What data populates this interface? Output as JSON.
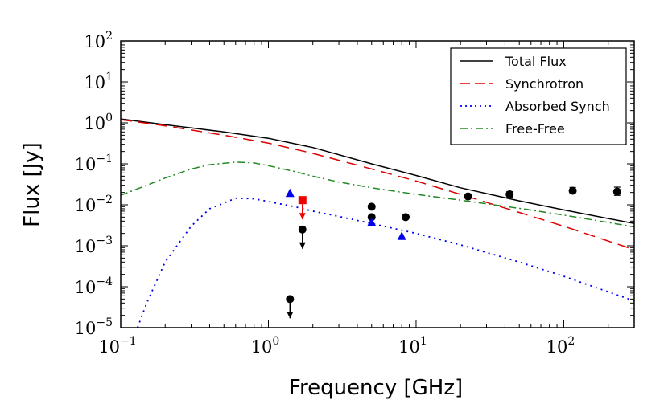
{
  "chart_data": {
    "type": "line",
    "xlabel": "Frequency [GHz]",
    "ylabel": "Flux [Jy]",
    "xscale": "log",
    "yscale": "log",
    "xlim": [
      0.1,
      300
    ],
    "ylim": [
      1e-05,
      100
    ],
    "x_ticks": [
      {
        "value": 0.1,
        "base": "10",
        "exp": "−1"
      },
      {
        "value": 1,
        "base": "10",
        "exp": "0"
      },
      {
        "value": 10,
        "base": "10",
        "exp": "1"
      },
      {
        "value": 100,
        "base": "10",
        "exp": "2"
      }
    ],
    "y_ticks": [
      {
        "value": 1e-05,
        "base": "10",
        "exp": "−5"
      },
      {
        "value": 0.0001,
        "base": "10",
        "exp": "−4"
      },
      {
        "value": 0.001,
        "base": "10",
        "exp": "−3"
      },
      {
        "value": 0.01,
        "base": "10",
        "exp": "−2"
      },
      {
        "value": 0.1,
        "base": "10",
        "exp": "−1"
      },
      {
        "value": 1,
        "base": "10",
        "exp": "0"
      },
      {
        "value": 10,
        "base": "10",
        "exp": "1"
      },
      {
        "value": 100,
        "base": "10",
        "exp": "2"
      }
    ],
    "legend_position": "top-right",
    "series": [
      {
        "name": "Total Flux",
        "color": "#000000",
        "style": "solid",
        "x": [
          0.1,
          0.2,
          0.5,
          1,
          2,
          5,
          10,
          20,
          50,
          100,
          300
        ],
        "y": [
          1.25,
          0.9,
          0.6,
          0.42,
          0.25,
          0.1,
          0.052,
          0.026,
          0.0125,
          0.0075,
          0.0035
        ]
      },
      {
        "name": "Synchrotron",
        "color": "#dd0000",
        "style": "dashed",
        "x": [
          0.1,
          0.2,
          0.5,
          1,
          2,
          5,
          10,
          20,
          50,
          100,
          300
        ],
        "y": [
          1.2,
          0.85,
          0.5,
          0.32,
          0.18,
          0.075,
          0.038,
          0.018,
          0.0065,
          0.003,
          0.0008
        ]
      },
      {
        "name": "Absorbed Synch",
        "color": "#0000ee",
        "style": "dotted",
        "x": [
          0.13,
          0.15,
          0.2,
          0.3,
          0.4,
          0.6,
          0.8,
          1,
          1.5,
          2,
          3,
          5,
          10,
          20,
          50,
          100,
          300
        ],
        "y": [
          1e-05,
          4e-05,
          0.0004,
          0.003,
          0.008,
          0.0145,
          0.014,
          0.012,
          0.009,
          0.007,
          0.0052,
          0.0035,
          0.002,
          0.00105,
          0.0004,
          0.00018,
          4.5e-05
        ]
      },
      {
        "name": "Free-Free",
        "color": "#228822",
        "style": "dashdot",
        "x": [
          0.1,
          0.15,
          0.2,
          0.3,
          0.4,
          0.6,
          0.8,
          1,
          1.5,
          2,
          3,
          5,
          10,
          20,
          50,
          100,
          300
        ],
        "y": [
          0.017,
          0.03,
          0.045,
          0.075,
          0.095,
          0.11,
          0.105,
          0.09,
          0.065,
          0.05,
          0.036,
          0.026,
          0.018,
          0.013,
          0.0082,
          0.0056,
          0.0029
        ]
      }
    ],
    "points": [
      {
        "label": "black circle",
        "x": 1.7,
        "y": 0.0025,
        "marker": "circle",
        "color": "#000000",
        "upper_limit": true
      },
      {
        "label": "black circle",
        "x": 1.4,
        "y": 5e-05,
        "marker": "circle",
        "color": "#000000",
        "upper_limit": true
      },
      {
        "label": "black circle",
        "x": 5.0,
        "y": 0.009,
        "marker": "circle",
        "color": "#000000",
        "upper_limit": false
      },
      {
        "label": "black circle",
        "x": 5.0,
        "y": 0.005,
        "marker": "circle",
        "color": "#000000",
        "upper_limit": false
      },
      {
        "label": "black circle",
        "x": 8.5,
        "y": 0.005,
        "marker": "circle",
        "color": "#000000",
        "upper_limit": false
      },
      {
        "label": "black circle",
        "x": 22.5,
        "y": 0.016,
        "marker": "circle",
        "color": "#000000",
        "upper_limit": false,
        "err": [
          0.0145,
          0.0175
        ]
      },
      {
        "label": "black circle",
        "x": 43,
        "y": 0.018,
        "marker": "circle",
        "color": "#000000",
        "upper_limit": false,
        "err": [
          0.0155,
          0.021
        ]
      },
      {
        "label": "black circle",
        "x": 115,
        "y": 0.022,
        "marker": "circle",
        "color": "#000000",
        "upper_limit": false,
        "err": [
          0.0185,
          0.0265
        ]
      },
      {
        "label": "black circle",
        "x": 230,
        "y": 0.021,
        "marker": "circle",
        "color": "#000000",
        "upper_limit": false,
        "err": [
          0.017,
          0.027
        ]
      },
      {
        "label": "blue triangle",
        "x": 1.4,
        "y": 0.019,
        "marker": "triangle",
        "color": "#0000ee",
        "upper_limit": false
      },
      {
        "label": "blue triangle",
        "x": 5.0,
        "y": 0.0037,
        "marker": "triangle",
        "color": "#0000ee",
        "upper_limit": false
      },
      {
        "label": "blue triangle",
        "x": 8.0,
        "y": 0.0017,
        "marker": "triangle",
        "color": "#0000ee",
        "upper_limit": false
      },
      {
        "label": "red square",
        "x": 1.7,
        "y": 0.013,
        "marker": "square",
        "color": "#ee0000",
        "upper_limit": true
      }
    ]
  }
}
